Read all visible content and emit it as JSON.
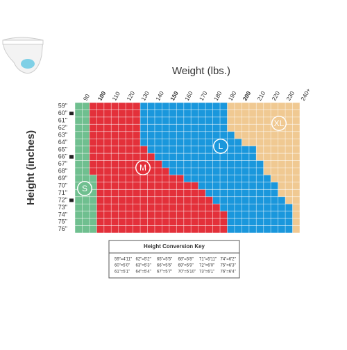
{
  "title": "Weight (lbs.)",
  "y_label": "Height (inches)",
  "weights": [
    "90",
    "100",
    "110",
    "120",
    "130",
    "140",
    "150",
    "160",
    "170",
    "180",
    "190",
    "200",
    "210",
    "220",
    "230",
    "240+"
  ],
  "heights": [
    "59\"",
    "60\"",
    "61\"",
    "62\"",
    "63\"",
    "64\"",
    "65\"",
    "66\"",
    "67\"",
    "68\"",
    "69\"",
    "70\"",
    "71\"",
    "72\"",
    "73\"",
    "74\"",
    "75\"",
    "76\""
  ],
  "sizes": [
    "S",
    "M",
    "L",
    "XL"
  ],
  "conversion_key": {
    "title": "Height Conversion Key",
    "rows": [
      [
        "59\"=4'11\"",
        "62\"=5'2\"",
        "65\"=5'5\"",
        "68\"=5'8\"",
        "71\"=5'11\"",
        "74\"=6'2\""
      ],
      [
        "60\"=5'0\"",
        "63\"=5'3\"",
        "66\"=5'6\"",
        "69\"=5'9\"",
        "72\"=6'0\"",
        "75\"=6'3\""
      ],
      [
        "61\"=5'1\"",
        "64\"=5'4\"",
        "67\"=5'7\"",
        "70\"=5'10\"",
        "73\"=6'1\"",
        "76\"=6'4\""
      ]
    ]
  }
}
